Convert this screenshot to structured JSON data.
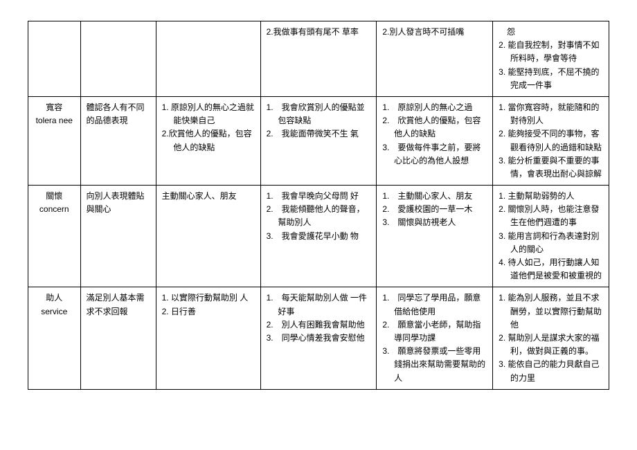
{
  "rows": [
    {
      "name_cn": "",
      "name_en": "",
      "desc": "",
      "colA": [],
      "colB": [
        "2.我做事有頭有尾不 草率"
      ],
      "colC": [
        "2.別人發言時不可插嘴"
      ],
      "colD": [
        "　怨",
        "2. 能自我控制，對事情不如所料時，學會等待",
        "3. 能堅持到底，不屈不撓的完成一件事"
      ]
    },
    {
      "name_cn": "寬容",
      "name_en": "tolera nee",
      "desc": "體認各人有不同的品德表現",
      "colA": [
        "1. 原諒別人的無心之過就能快樂自己",
        "2.欣賞他人的優點，包容他人的缺點"
      ],
      "colB": [
        "1.　我會欣賞別人的優點並包容缺點",
        "2.　我能面帶微笑不生 氣"
      ],
      "colC": [
        "1.　原諒別人的無心之過",
        "2.　欣賞他人的優點，包容他人的缺點",
        "3.　要做每件事之前，要將心比心的為他人設想"
      ],
      "colD": [
        "1. 當你寬容時，就能隨和的對待別人",
        "2. 能夠接受不同的事物，客觀看待別人的過錯和缺點",
        "3. 能分析重要與不重要的事情，會表現出耐心與諒解"
      ]
    },
    {
      "name_cn": "關懷",
      "name_en": "concern",
      "desc": "向別人表現體貼與關心",
      "colA": [
        "主動關心家人、朋友"
      ],
      "colB": [
        "1.　我會早晚向父母問 好",
        "2.　我能傾聽他人的聲音，幫助別人",
        "3.　我會愛護花早小動 物"
      ],
      "colC": [
        "1.　主動關心家人、朋友",
        "2.　愛護校園的一草一木",
        "3.　關懷與訪視老人"
      ],
      "colD": [
        "1. 主動幫助弱勢的人",
        "2. 關懷別人時，也能注意發生在他們週遭的事",
        "3. 能用言詞和行為表達對別人的關心",
        "4. 待人如己，用行動讓人知道他們是被愛和被重視的"
      ]
    },
    {
      "name_cn": "助人",
      "name_en": "service",
      "desc": "滿足別人基本需求不求回報",
      "colA": [
        "1. 以實際行動幫助別 人",
        "2. 日行善"
      ],
      "colB": [
        "1.　每天能幫助別人做 一件好事",
        "2.　別人有困難我會幫助他",
        "3.　同學心情差我會安慰他"
      ],
      "colC": [
        "1.　同學忘了學用品，願意借給他使用",
        "2.　願意當小老師，幫助指導同學功課",
        "3.　願意將發票或一些零用錢捐出來幫助需要幫助的人"
      ],
      "colD": [
        "1. 能為別人服務，並且不求酬勞，並以實際行動幫助他",
        "2. 幫助別人是謀求大家的福利，做對與正義的事。",
        "3. 能依自己的能力貝獻自己的力里"
      ]
    }
  ]
}
